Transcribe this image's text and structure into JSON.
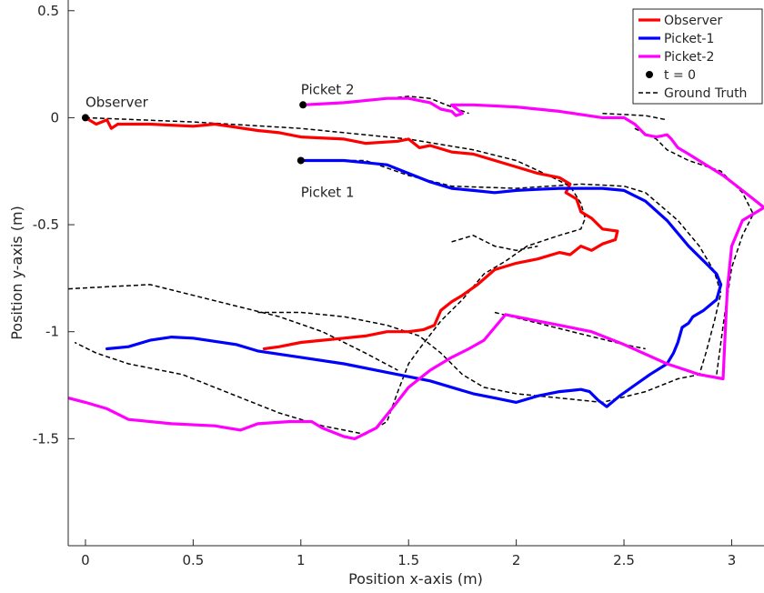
{
  "chart_data": {
    "type": "line",
    "title": "",
    "xlabel": "Position x-axis (m)",
    "ylabel": "Position y-axis (m)",
    "xlim": [
      -0.08,
      3.15
    ],
    "ylim": [
      -2.0,
      0.55
    ],
    "xticks": [
      0,
      0.5,
      1,
      1.5,
      2,
      2.5,
      3
    ],
    "xtick_labels": [
      "0",
      "0.5",
      "1",
      "1.5",
      "2",
      "2.5",
      "3"
    ],
    "yticks": [
      0.5,
      0,
      -0.5,
      -1,
      -1.5
    ],
    "ytick_labels": [
      "0.5",
      "0",
      "-0.5",
      "-1",
      "-1.5"
    ],
    "grid": false,
    "legend_position": "top-right",
    "legend": [
      {
        "label": "Observer",
        "color": "#ff0000",
        "style": "solid"
      },
      {
        "label": "Picket-1",
        "color": "#0000ff",
        "style": "solid"
      },
      {
        "label": "Picket-2",
        "color": "#ff00ff",
        "style": "solid"
      },
      {
        "label": "t = 0",
        "color": "#000000",
        "style": "marker"
      },
      {
        "label": "Ground Truth",
        "color": "#000000",
        "style": "dashed"
      }
    ],
    "annotations": [
      {
        "text": "Observer",
        "x": 0.0,
        "y": 0.05
      },
      {
        "text": "Picket 2",
        "x": 1.0,
        "y": 0.11
      },
      {
        "text": "Picket 1",
        "x": 1.0,
        "y": -0.37
      }
    ],
    "start_points": [
      {
        "x": 0.0,
        "y": 0.0
      },
      {
        "x": 1.0,
        "y": -0.2
      },
      {
        "x": 1.01,
        "y": 0.06
      }
    ],
    "series": [
      {
        "name": "Observer",
        "color": "#ff0000",
        "points": [
          [
            0,
            0
          ],
          [
            0.05,
            -0.03
          ],
          [
            0.1,
            -0.01
          ],
          [
            0.12,
            -0.05
          ],
          [
            0.15,
            -0.03
          ],
          [
            0.3,
            -0.03
          ],
          [
            0.5,
            -0.04
          ],
          [
            0.6,
            -0.03
          ],
          [
            0.8,
            -0.06
          ],
          [
            0.9,
            -0.07
          ],
          [
            1.0,
            -0.09
          ],
          [
            1.2,
            -0.1
          ],
          [
            1.3,
            -0.12
          ],
          [
            1.45,
            -0.11
          ],
          [
            1.5,
            -0.1
          ],
          [
            1.55,
            -0.14
          ],
          [
            1.6,
            -0.13
          ],
          [
            1.7,
            -0.16
          ],
          [
            1.8,
            -0.17
          ],
          [
            2.0,
            -0.23
          ],
          [
            2.1,
            -0.26
          ],
          [
            2.2,
            -0.28
          ],
          [
            2.25,
            -0.31
          ],
          [
            2.23,
            -0.35
          ],
          [
            2.28,
            -0.38
          ],
          [
            2.3,
            -0.44
          ],
          [
            2.35,
            -0.47
          ],
          [
            2.4,
            -0.52
          ],
          [
            2.47,
            -0.53
          ],
          [
            2.46,
            -0.57
          ],
          [
            2.4,
            -0.59
          ],
          [
            2.35,
            -0.62
          ],
          [
            2.3,
            -0.6
          ],
          [
            2.25,
            -0.64
          ],
          [
            2.2,
            -0.63
          ],
          [
            2.1,
            -0.66
          ],
          [
            2.0,
            -0.68
          ],
          [
            1.9,
            -0.71
          ],
          [
            1.82,
            -0.78
          ],
          [
            1.75,
            -0.83
          ],
          [
            1.7,
            -0.86
          ],
          [
            1.65,
            -0.9
          ],
          [
            1.62,
            -0.97
          ],
          [
            1.57,
            -0.99
          ],
          [
            1.5,
            -1.0
          ],
          [
            1.4,
            -1.0
          ],
          [
            1.3,
            -1.02
          ],
          [
            1.2,
            -1.03
          ],
          [
            1.1,
            -1.04
          ],
          [
            1.0,
            -1.05
          ],
          [
            0.9,
            -1.07
          ],
          [
            0.83,
            -1.08
          ]
        ]
      },
      {
        "name": "Picket-1",
        "color": "#0000ff",
        "points": [
          [
            1.0,
            -0.2
          ],
          [
            1.2,
            -0.2
          ],
          [
            1.3,
            -0.21
          ],
          [
            1.4,
            -0.22
          ],
          [
            1.5,
            -0.26
          ],
          [
            1.6,
            -0.3
          ],
          [
            1.7,
            -0.33
          ],
          [
            1.8,
            -0.34
          ],
          [
            1.9,
            -0.35
          ],
          [
            2.0,
            -0.34
          ],
          [
            2.1,
            -0.335
          ],
          [
            2.2,
            -0.33
          ],
          [
            2.3,
            -0.33
          ],
          [
            2.4,
            -0.33
          ],
          [
            2.5,
            -0.34
          ],
          [
            2.6,
            -0.39
          ],
          [
            2.7,
            -0.48
          ],
          [
            2.8,
            -0.6
          ],
          [
            2.88,
            -0.68
          ],
          [
            2.93,
            -0.73
          ],
          [
            2.95,
            -0.78
          ],
          [
            2.93,
            -0.85
          ],
          [
            2.87,
            -0.9
          ],
          [
            2.82,
            -0.93
          ],
          [
            2.8,
            -0.96
          ],
          [
            2.77,
            -0.98
          ],
          [
            2.75,
            -1.05
          ],
          [
            2.73,
            -1.1
          ],
          [
            2.7,
            -1.15
          ],
          [
            2.62,
            -1.2
          ],
          [
            2.55,
            -1.25
          ],
          [
            2.48,
            -1.3
          ],
          [
            2.42,
            -1.35
          ],
          [
            2.38,
            -1.32
          ],
          [
            2.34,
            -1.28
          ],
          [
            2.3,
            -1.27
          ],
          [
            2.2,
            -1.28
          ],
          [
            2.1,
            -1.3
          ],
          [
            2.0,
            -1.33
          ],
          [
            1.9,
            -1.31
          ],
          [
            1.8,
            -1.29
          ],
          [
            1.6,
            -1.23
          ],
          [
            1.4,
            -1.19
          ],
          [
            1.2,
            -1.15
          ],
          [
            1.0,
            -1.12
          ],
          [
            0.8,
            -1.09
          ],
          [
            0.7,
            -1.06
          ],
          [
            0.5,
            -1.03
          ],
          [
            0.4,
            -1.025
          ],
          [
            0.3,
            -1.04
          ],
          [
            0.2,
            -1.07
          ],
          [
            0.1,
            -1.08
          ]
        ]
      },
      {
        "name": "Picket-2",
        "color": "#ff00ff",
        "points": [
          [
            1.01,
            0.06
          ],
          [
            1.2,
            0.07
          ],
          [
            1.4,
            0.09
          ],
          [
            1.5,
            0.09
          ],
          [
            1.6,
            0.07
          ],
          [
            1.65,
            0.04
          ],
          [
            1.7,
            0.03
          ],
          [
            1.72,
            0.01
          ],
          [
            1.75,
            0.02
          ],
          [
            1.7,
            0.06
          ],
          [
            1.8,
            0.06
          ],
          [
            2.0,
            0.05
          ],
          [
            2.2,
            0.03
          ],
          [
            2.4,
            0.0
          ],
          [
            2.5,
            0.0
          ],
          [
            2.55,
            -0.03
          ],
          [
            2.6,
            -0.08
          ],
          [
            2.65,
            -0.09
          ],
          [
            2.7,
            -0.08
          ],
          [
            2.72,
            -0.1
          ],
          [
            2.75,
            -0.14
          ],
          [
            2.8,
            -0.17
          ],
          [
            2.88,
            -0.22
          ],
          [
            2.96,
            -0.27
          ],
          [
            3.05,
            -0.34
          ],
          [
            3.1,
            -0.38
          ],
          [
            3.15,
            -0.42
          ],
          [
            3.05,
            -0.48
          ],
          [
            3.0,
            -0.6
          ],
          [
            2.98,
            -0.8
          ],
          [
            2.97,
            -1.0
          ],
          [
            2.96,
            -1.22
          ],
          [
            2.85,
            -1.2
          ],
          [
            2.7,
            -1.15
          ],
          [
            2.5,
            -1.06
          ],
          [
            2.35,
            -1.0
          ],
          [
            2.2,
            -0.97
          ],
          [
            2.1,
            -0.95
          ],
          [
            1.95,
            -0.92
          ],
          [
            1.9,
            -0.98
          ],
          [
            1.85,
            -1.04
          ],
          [
            1.78,
            -1.08
          ],
          [
            1.7,
            -1.12
          ],
          [
            1.65,
            -1.15
          ],
          [
            1.6,
            -1.18
          ],
          [
            1.5,
            -1.26
          ],
          [
            1.43,
            -1.35
          ],
          [
            1.35,
            -1.45
          ],
          [
            1.25,
            -1.5
          ],
          [
            1.2,
            -1.49
          ],
          [
            1.1,
            -1.45
          ],
          [
            1.05,
            -1.42
          ],
          [
            0.95,
            -1.42
          ],
          [
            0.8,
            -1.43
          ],
          [
            0.72,
            -1.46
          ],
          [
            0.6,
            -1.44
          ],
          [
            0.4,
            -1.43
          ],
          [
            0.2,
            -1.41
          ],
          [
            0.1,
            -1.36
          ],
          [
            0.0,
            -1.33
          ],
          [
            -0.08,
            -1.31
          ]
        ]
      },
      {
        "name": "Ground Truth",
        "color": "#000000",
        "dashed": true,
        "paths": [
          [
            [
              0,
              0
            ],
            [
              0.5,
              -0.02
            ],
            [
              1.0,
              -0.05
            ],
            [
              1.5,
              -0.1
            ],
            [
              1.8,
              -0.15
            ],
            [
              2.0,
              -0.2
            ],
            [
              2.15,
              -0.27
            ],
            [
              2.25,
              -0.32
            ],
            [
              2.3,
              -0.4
            ],
            [
              2.32,
              -0.47
            ],
            [
              2.3,
              -0.52
            ],
            [
              2.2,
              -0.55
            ],
            [
              2.05,
              -0.6
            ],
            [
              1.95,
              -0.67
            ],
            [
              1.85,
              -0.73
            ],
            [
              1.75,
              -0.85
            ],
            [
              1.65,
              -0.95
            ],
            [
              1.55,
              -1.08
            ],
            [
              1.5,
              -1.15
            ],
            [
              1.45,
              -1.28
            ],
            [
              1.4,
              -1.42
            ],
            [
              1.3,
              -1.48
            ],
            [
              1.2,
              -1.46
            ],
            [
              1.1,
              -1.44
            ],
            [
              0.9,
              -1.38
            ],
            [
              0.7,
              -1.3
            ],
            [
              0.45,
              -1.2
            ],
            [
              0.2,
              -1.15
            ],
            [
              0.05,
              -1.1
            ],
            [
              -0.05,
              -1.05
            ]
          ],
          [
            [
              1.0,
              -0.2
            ],
            [
              1.3,
              -0.2
            ],
            [
              1.5,
              -0.27
            ],
            [
              1.7,
              -0.32
            ],
            [
              2.0,
              -0.33
            ],
            [
              2.3,
              -0.31
            ],
            [
              2.5,
              -0.32
            ],
            [
              2.6,
              -0.35
            ],
            [
              2.75,
              -0.48
            ],
            [
              2.85,
              -0.6
            ],
            [
              2.92,
              -0.72
            ],
            [
              2.95,
              -0.82
            ],
            [
              2.92,
              -0.95
            ],
            [
              2.88,
              -1.1
            ],
            [
              2.85,
              -1.2
            ],
            [
              2.75,
              -1.22
            ],
            [
              2.6,
              -1.28
            ],
            [
              2.4,
              -1.33
            ],
            [
              2.2,
              -1.31
            ],
            [
              2.0,
              -1.29
            ],
            [
              1.85,
              -1.26
            ],
            [
              1.75,
              -1.2
            ],
            [
              1.65,
              -1.1
            ],
            [
              1.55,
              -1.02
            ],
            [
              1.4,
              -0.97
            ],
            [
              1.2,
              -0.93
            ],
            [
              1.0,
              -0.91
            ],
            [
              0.8,
              -0.91
            ]
          ],
          [
            [
              1.01,
              0.06
            ],
            [
              1.3,
              0.08
            ],
            [
              1.5,
              0.1
            ],
            [
              1.6,
              0.09
            ],
            [
              1.7,
              0.05
            ],
            [
              1.78,
              0.02
            ]
          ],
          [
            [
              2.4,
              0.02
            ],
            [
              2.6,
              0.01
            ],
            [
              2.7,
              -0.01
            ]
          ],
          [
            [
              2.55,
              -0.05
            ],
            [
              2.65,
              -0.1
            ],
            [
              2.7,
              -0.15
            ],
            [
              2.8,
              -0.2
            ],
            [
              2.95,
              -0.25
            ],
            [
              3.05,
              -0.35
            ],
            [
              3.1,
              -0.45
            ],
            [
              3.05,
              -0.55
            ],
            [
              3.0,
              -0.7
            ],
            [
              2.97,
              -0.9
            ],
            [
              2.95,
              -1.05
            ],
            [
              2.93,
              -1.2
            ]
          ],
          [
            [
              1.9,
              -0.91
            ],
            [
              2.1,
              -0.96
            ],
            [
              2.3,
              -1.01
            ],
            [
              2.5,
              -1.06
            ],
            [
              2.6,
              -1.08
            ]
          ],
          [
            [
              -0.08,
              -0.8
            ],
            [
              0.1,
              -0.79
            ],
            [
              0.3,
              -0.78
            ],
            [
              0.5,
              -0.83
            ],
            [
              0.7,
              -0.88
            ],
            [
              0.9,
              -0.93
            ],
            [
              1.1,
              -1.0
            ],
            [
              1.3,
              -1.1
            ],
            [
              1.45,
              -1.18
            ]
          ],
          [
            [
              1.7,
              -0.58
            ],
            [
              1.8,
              -0.55
            ],
            [
              1.9,
              -0.6
            ],
            [
              2.0,
              -0.62
            ],
            [
              2.1,
              -0.6
            ]
          ]
        ]
      }
    ]
  }
}
